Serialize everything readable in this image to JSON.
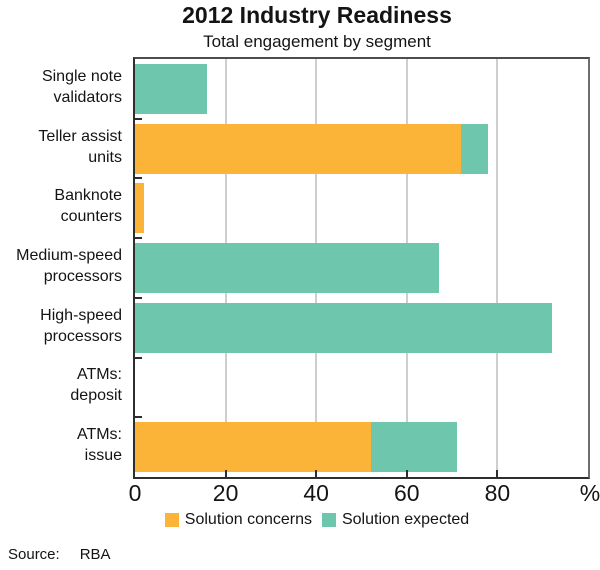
{
  "chart_data": {
    "type": "bar",
    "orientation": "horizontal",
    "stacked": true,
    "title": "2012 Industry Readiness",
    "subtitle": "Total engagement by segment",
    "categories": [
      "Single note\nvalidators",
      "Teller assist\nunits",
      "Banknote\ncounters",
      "Medium-speed\nprocessors",
      "High-speed\nprocessors",
      "ATMs:\ndeposit",
      "ATMs:\nissue"
    ],
    "series": [
      {
        "name": "Solution concerns",
        "color": "#FBB437",
        "values": [
          0,
          72,
          2,
          0,
          0,
          0,
          52
        ]
      },
      {
        "name": "Solution expected",
        "color": "#6EC6AD",
        "values": [
          16,
          6,
          0,
          67,
          92,
          0,
          19
        ]
      }
    ],
    "xlim": [
      0,
      100
    ],
    "xticks": [
      0,
      20,
      40,
      60,
      80
    ],
    "unit": "%",
    "grid": "vertical-gridlines",
    "gridline_color": "#cecece",
    "legend_position": "bottom"
  },
  "source": {
    "label": "Source:",
    "value": "RBA"
  }
}
